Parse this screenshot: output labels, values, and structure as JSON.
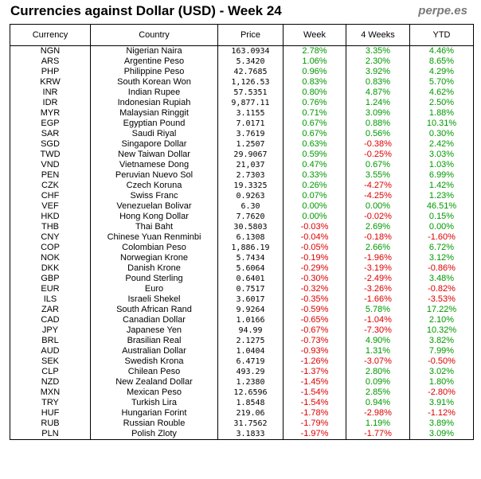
{
  "header": {
    "title": "Currencies against Dollar (USD) - Week 24",
    "brand": "perpe.es"
  },
  "table": {
    "columns": [
      "Currency",
      "Country",
      "Price",
      "Week",
      "4 Weeks",
      "YTD"
    ],
    "rows": [
      [
        "NGN",
        "Nigerian Naira",
        "163.0934",
        "2.78%",
        "3.35%",
        "4.46%"
      ],
      [
        "ARS",
        "Argentine Peso",
        "5.3420",
        "1.06%",
        "2.30%",
        "8.65%"
      ],
      [
        "PHP",
        "Philippine Peso",
        "42.7685",
        "0.96%",
        "3.92%",
        "4.29%"
      ],
      [
        "KRW",
        "South Korean Won",
        "1,126.53",
        "0.83%",
        "0.83%",
        "5.70%"
      ],
      [
        "INR",
        "Indian Rupee",
        "57.5351",
        "0.80%",
        "4.87%",
        "4.62%"
      ],
      [
        "IDR",
        "Indonesian Rupiah",
        "9,877.11",
        "0.76%",
        "1.24%",
        "2.50%"
      ],
      [
        "MYR",
        "Malaysian Ringgit",
        "3.1155",
        "0.71%",
        "3.09%",
        "1.88%"
      ],
      [
        "EGP",
        "Egyptian Pound",
        "7.0171",
        "0.67%",
        "0.88%",
        "10.31%"
      ],
      [
        "SAR",
        "Saudi Riyal",
        "3.7619",
        "0.67%",
        "0.56%",
        "0.30%"
      ],
      [
        "SGD",
        "Singapore Dollar",
        "1.2507",
        "0.63%",
        "-0.38%",
        "2.42%"
      ],
      [
        "TWD",
        "New Taiwan Dollar",
        "29.9067",
        "0.59%",
        "-0.25%",
        "3.03%"
      ],
      [
        "VND",
        "Vietnamese Dong",
        "21,037",
        "0.47%",
        "0.67%",
        "1.03%"
      ],
      [
        "PEN",
        "Peruvian Nuevo Sol",
        "2.7303",
        "0.33%",
        "3.55%",
        "6.99%"
      ],
      [
        "CZK",
        "Czech Koruna",
        "19.3325",
        "0.26%",
        "-4.27%",
        "1.42%"
      ],
      [
        "CHF",
        "Swiss Franc",
        "0.9263",
        "0.07%",
        "-4.25%",
        "1.23%"
      ],
      [
        "VEF",
        "Venezuelan Bolivar",
        "6.30",
        "0.00%",
        "0.00%",
        "46.51%"
      ],
      [
        "HKD",
        "Hong Kong Dollar",
        "7.7620",
        "0.00%",
        "-0.02%",
        "0.15%"
      ],
      [
        "THB",
        "Thai Baht",
        "30.5803",
        "-0.03%",
        "2.69%",
        "0.00%"
      ],
      [
        "CNY",
        "Chinese Yuan Renminbi",
        "6.1308",
        "-0.04%",
        "-0.18%",
        "-1.60%"
      ],
      [
        "COP",
        "Colombian Peso",
        "1,886.19",
        "-0.05%",
        "2.66%",
        "6.72%"
      ],
      [
        "NOK",
        "Norwegian Krone",
        "5.7434",
        "-0.19%",
        "-1.96%",
        "3.12%"
      ],
      [
        "DKK",
        "Danish Krone",
        "5.6064",
        "-0.29%",
        "-3.19%",
        "-0.86%"
      ],
      [
        "GBP",
        "Pound Sterling",
        "0.6401",
        "-0.30%",
        "-2.49%",
        "3.48%"
      ],
      [
        "EUR",
        "Euro",
        "0.7517",
        "-0.32%",
        "-3.26%",
        "-0.82%"
      ],
      [
        "ILS",
        "Israeli Shekel",
        "3.6017",
        "-0.35%",
        "-1.66%",
        "-3.53%"
      ],
      [
        "ZAR",
        "South African Rand",
        "9.9264",
        "-0.59%",
        "5.78%",
        "17.22%"
      ],
      [
        "CAD",
        "Canadian Dollar",
        "1.0166",
        "-0.65%",
        "-1.04%",
        "2.10%"
      ],
      [
        "JPY",
        "Japanese Yen",
        "94.99",
        "-0.67%",
        "-7.30%",
        "10.32%"
      ],
      [
        "BRL",
        "Brasilian Real",
        "2.1275",
        "-0.73%",
        "4.90%",
        "3.82%"
      ],
      [
        "AUD",
        "Australian Dollar",
        "1.0404",
        "-0.93%",
        "1.31%",
        "7.99%"
      ],
      [
        "SEK",
        "Swedish Krona",
        "6.4719",
        "-1.26%",
        "-3.07%",
        "-0.50%"
      ],
      [
        "CLP",
        "Chilean Peso",
        "493.29",
        "-1.37%",
        "2.80%",
        "3.02%"
      ],
      [
        "NZD",
        "New Zealand Dollar",
        "1.2380",
        "-1.45%",
        "0.09%",
        "1.80%"
      ],
      [
        "MXN",
        "Mexican Peso",
        "12.6596",
        "-1.54%",
        "2.85%",
        "-2.80%"
      ],
      [
        "TRY",
        "Turkish Lira",
        "1.8548",
        "-1.54%",
        "0.94%",
        "3.91%"
      ],
      [
        "HUF",
        "Hungarian Forint",
        "219.06",
        "-1.78%",
        "-2.98%",
        "-1.12%"
      ],
      [
        "RUB",
        "Russian Rouble",
        "31.7562",
        "-1.79%",
        "1.19%",
        "3.89%"
      ],
      [
        "PLN",
        "Polish Zloty",
        "3.1833",
        "-1.97%",
        "-1.77%",
        "3.09%"
      ]
    ],
    "colors": {
      "positive": "#009900",
      "negative": "#dd0000"
    }
  }
}
